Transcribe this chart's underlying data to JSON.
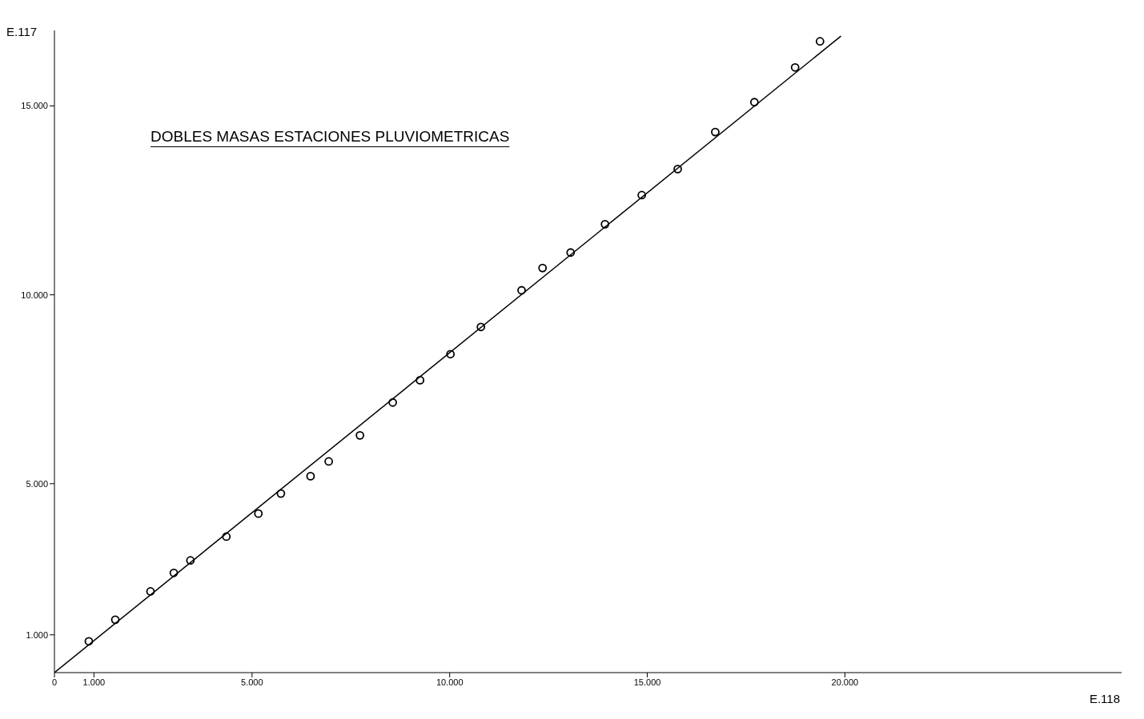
{
  "chart_data": {
    "type": "scatter",
    "title": "DOBLES MASAS ESTACIONES PLUVIOMETRICAS",
    "xlabel": "E.118",
    "ylabel": "E.117",
    "xlim": [
      0,
      27000
    ],
    "ylim": [
      0,
      17000
    ],
    "xticks": [
      {
        "value": 0,
        "label": "0"
      },
      {
        "value": 1000,
        "label": "1.000"
      },
      {
        "value": 5000,
        "label": "5.000"
      },
      {
        "value": 10000,
        "label": "10.000"
      },
      {
        "value": 15000,
        "label": "15.000"
      },
      {
        "value": 20000,
        "label": "20.000"
      }
    ],
    "yticks": [
      {
        "value": 1000,
        "label": "1.000"
      },
      {
        "value": 5000,
        "label": "5.000"
      },
      {
        "value": 10000,
        "label": "10.000"
      },
      {
        "value": 15000,
        "label": "15.000"
      }
    ],
    "grid": false,
    "legend": false,
    "series": [
      {
        "marker": "circle",
        "color": "#000000",
        "x": [
          870,
          1540,
          2430,
          3020,
          3440,
          4350,
          5160,
          5730,
          6480,
          6940,
          7730,
          8560,
          9250,
          10020,
          10790,
          11820,
          12350,
          13060,
          13930,
          14860,
          15770,
          16720,
          17710,
          18740,
          19370
        ],
        "values": [
          830,
          1400,
          2150,
          2640,
          2970,
          3600,
          4210,
          4740,
          5200,
          5590,
          6280,
          7150,
          7740,
          8430,
          9150,
          10120,
          10710,
          11120,
          11870,
          12640,
          13330,
          14310,
          15100,
          16020,
          16710
        ]
      },
      {
        "type": "line",
        "marker": "none",
        "color": "#000000",
        "x": [
          0,
          19900
        ],
        "values": [
          0,
          16850
        ]
      }
    ]
  }
}
